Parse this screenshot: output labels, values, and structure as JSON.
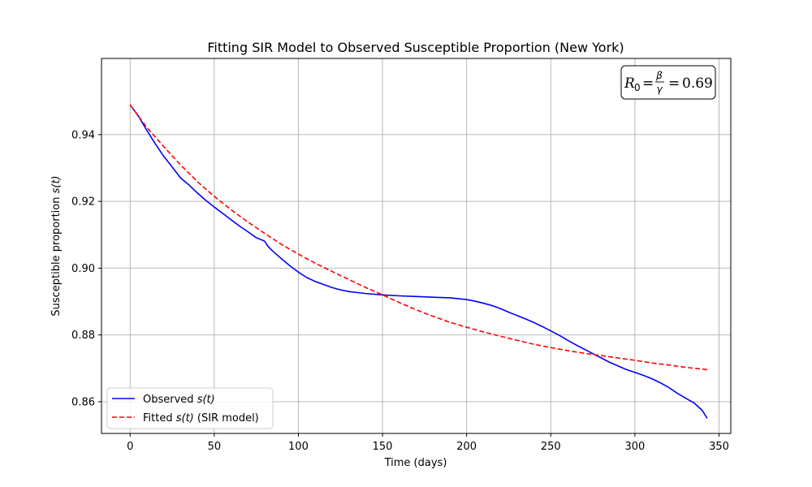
{
  "chart_data": {
    "type": "line",
    "title": "Fitting SIR Model to Observed Susceptible Proportion (New York)",
    "xlabel": "Time (days)",
    "ylabel_main": "Susceptible proportion ",
    "ylabel_var": "s(t)",
    "xlim": [
      -17,
      357
    ],
    "ylim": [
      0.8505,
      0.9628
    ],
    "grid": true,
    "legend_position": "lower-left",
    "x_ticks": [
      0,
      50,
      100,
      150,
      200,
      250,
      300,
      350
    ],
    "x_tick_labels": [
      "0",
      "50",
      "100",
      "150",
      "200",
      "250",
      "300",
      "350"
    ],
    "y_ticks": [
      0.86,
      0.88,
      0.9,
      0.92,
      0.94
    ],
    "y_tick_labels": [
      "0.86",
      "0.88",
      "0.90",
      "0.92",
      "0.94"
    ],
    "annotation": {
      "r_symbol": "R",
      "r_sub": "0",
      "eq1": "=",
      "frac_num": "β",
      "frac_den": "γ",
      "eq2": "=",
      "value": "0.69"
    },
    "series": [
      {
        "name": "Observed s(t)",
        "legend_prefix": "Observed ",
        "legend_var": "s(t)",
        "legend_suffix": "",
        "color": "#0000ff",
        "style": "solid",
        "x": [
          0,
          5,
          10,
          15,
          20,
          25,
          30,
          35,
          40,
          45,
          50,
          55,
          60,
          65,
          70,
          75,
          79,
          80,
          82,
          85,
          90,
          95,
          100,
          105,
          110,
          115,
          120,
          125,
          130,
          140,
          150,
          160,
          170,
          180,
          190,
          200,
          205,
          210,
          215,
          220,
          225,
          230,
          235,
          240,
          245,
          250,
          255,
          260,
          265,
          270,
          275,
          280,
          285,
          290,
          295,
          300,
          305,
          310,
          315,
          320,
          325,
          330,
          335,
          340,
          343
        ],
        "y": [
          0.9489,
          0.9455,
          0.9412,
          0.9372,
          0.9335,
          0.9303,
          0.927,
          0.9249,
          0.9225,
          0.9203,
          0.9183,
          0.9164,
          0.9145,
          0.9126,
          0.9109,
          0.9091,
          0.9083,
          0.908,
          0.9065,
          0.905,
          0.9028,
          0.9007,
          0.8988,
          0.8972,
          0.896,
          0.8951,
          0.8942,
          0.8935,
          0.893,
          0.8924,
          0.892,
          0.8917,
          0.8915,
          0.8913,
          0.8911,
          0.8906,
          0.8901,
          0.8895,
          0.8888,
          0.8879,
          0.8868,
          0.8858,
          0.8848,
          0.8837,
          0.8825,
          0.8812,
          0.8799,
          0.8784,
          0.877,
          0.8757,
          0.8744,
          0.8731,
          0.8718,
          0.8707,
          0.8696,
          0.8688,
          0.8679,
          0.8669,
          0.8657,
          0.8643,
          0.8626,
          0.8611,
          0.8597,
          0.8574,
          0.855
        ]
      },
      {
        "name": "Fitted s(t) (SIR model)",
        "legend_prefix": "Fitted ",
        "legend_var": "s(t)",
        "legend_suffix": " (SIR model)",
        "color": "#ff0000",
        "style": "dashed",
        "x": [
          0,
          10,
          20,
          30,
          40,
          50,
          60,
          70,
          80,
          90,
          100,
          110,
          120,
          130,
          140,
          150,
          160,
          170,
          180,
          190,
          200,
          210,
          220,
          230,
          240,
          250,
          260,
          270,
          280,
          290,
          300,
          310,
          320,
          330,
          343
        ],
        "y": [
          0.9489,
          0.9421,
          0.9364,
          0.9309,
          0.9259,
          0.9215,
          0.9175,
          0.9138,
          0.9104,
          0.9071,
          0.9042,
          0.9015,
          0.899,
          0.8966,
          0.8942,
          0.892,
          0.8897,
          0.8875,
          0.8856,
          0.8838,
          0.8823,
          0.8809,
          0.8796,
          0.8784,
          0.8772,
          0.8762,
          0.8753,
          0.8745,
          0.8738,
          0.8731,
          0.8724,
          0.8716,
          0.871,
          0.8703,
          0.8696
        ]
      }
    ]
  }
}
